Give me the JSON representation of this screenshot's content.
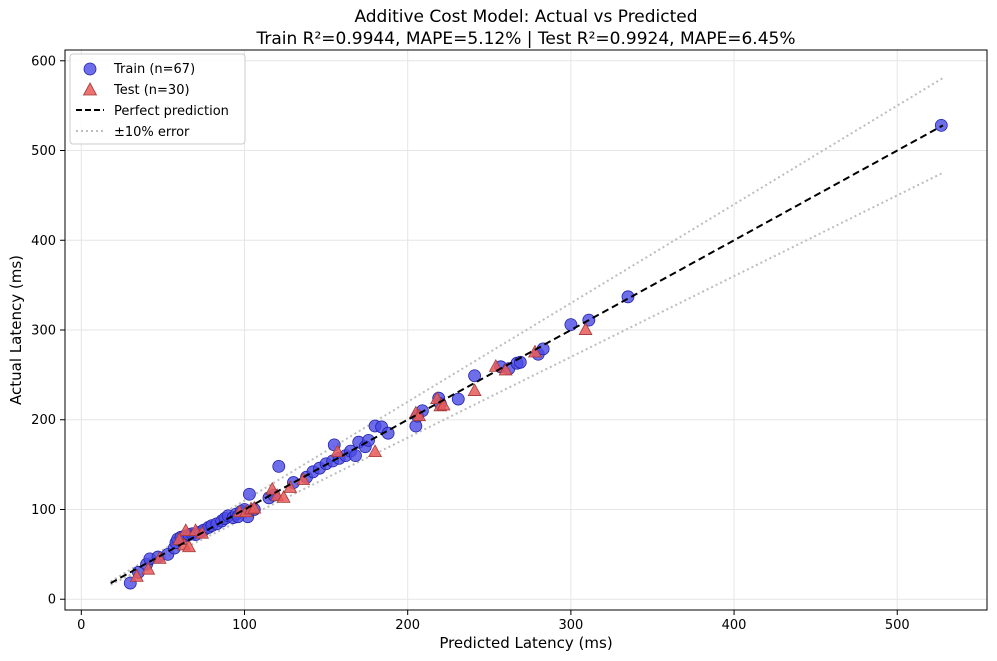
{
  "chart_data": {
    "type": "scatter",
    "title": "Additive Cost Model: Actual vs Predicted",
    "subtitle": "Train R²=0.9944, MAPE=5.12% | Test R²=0.9924, MAPE=6.45%",
    "xlabel": "Predicted Latency (ms)",
    "ylabel": "Actual Latency (ms)",
    "xlim": [
      -10,
      555
    ],
    "ylim": [
      -12,
      612
    ],
    "xticks": [
      0,
      100,
      200,
      300,
      400,
      500
    ],
    "yticks": [
      0,
      100,
      200,
      300,
      400,
      500,
      600
    ],
    "grid": true,
    "legend_position": "top-left",
    "colors": {
      "train": "#4a4ae6",
      "train_edge": "#2222aa",
      "test": "#ea5a5a",
      "test_edge": "#a33a3a",
      "perfect": "#000000",
      "error_band": "#bdbdbd",
      "grid": "#e6e6e6"
    },
    "legend": {
      "train": "Train (n=67)",
      "test": "Test (n=30)",
      "perfect": "Perfect prediction",
      "error_band": "±10% error"
    },
    "reference_lines": {
      "perfect": {
        "x": [
          18,
          528
        ],
        "y": [
          18,
          528
        ]
      },
      "upper_10pct": {
        "x": [
          18,
          528
        ],
        "y": [
          19.8,
          580.8
        ]
      },
      "lower_10pct": {
        "x": [
          18,
          528
        ],
        "y": [
          16.2,
          475.2
        ]
      }
    },
    "series": [
      {
        "name": "Train (n=67)",
        "marker": "circle",
        "points": [
          [
            30,
            18
          ],
          [
            35,
            30
          ],
          [
            40,
            39
          ],
          [
            42,
            45
          ],
          [
            47,
            47
          ],
          [
            53,
            50
          ],
          [
            57,
            57
          ],
          [
            58,
            63
          ],
          [
            59,
            67
          ],
          [
            61,
            69
          ],
          [
            63,
            70
          ],
          [
            66,
            72
          ],
          [
            68,
            73
          ],
          [
            70,
            72
          ],
          [
            73,
            75
          ],
          [
            75,
            77
          ],
          [
            78,
            80
          ],
          [
            80,
            82
          ],
          [
            83,
            84
          ],
          [
            86,
            87
          ],
          [
            88,
            90
          ],
          [
            90,
            93
          ],
          [
            93,
            91
          ],
          [
            95,
            95
          ],
          [
            98,
            98
          ],
          [
            100,
            100
          ],
          [
            102,
            92
          ],
          [
            103,
            117
          ],
          [
            106,
            100
          ],
          [
            115,
            113
          ],
          [
            118,
            116
          ],
          [
            121,
            148
          ],
          [
            130,
            130
          ],
          [
            138,
            136
          ],
          [
            142,
            142
          ],
          [
            146,
            146
          ],
          [
            150,
            151
          ],
          [
            154,
            154
          ],
          [
            155,
            172
          ],
          [
            158,
            157
          ],
          [
            162,
            160
          ],
          [
            165,
            165
          ],
          [
            168,
            160
          ],
          [
            170,
            175
          ],
          [
            174,
            170
          ],
          [
            176,
            177
          ],
          [
            180,
            193
          ],
          [
            184,
            192
          ],
          [
            188,
            185
          ],
          [
            205,
            193
          ],
          [
            206,
            204
          ],
          [
            209,
            210
          ],
          [
            219,
            224
          ],
          [
            220,
            218
          ],
          [
            231,
            223
          ],
          [
            241,
            249
          ],
          [
            257,
            259
          ],
          [
            262,
            257
          ],
          [
            267,
            263
          ],
          [
            269,
            264
          ],
          [
            280,
            273
          ],
          [
            283,
            279
          ],
          [
            300,
            306
          ],
          [
            311,
            311
          ],
          [
            335,
            337
          ],
          [
            527,
            528
          ],
          [
            96,
            92
          ]
        ]
      },
      {
        "name": "Test (n=30)",
        "marker": "triangle",
        "points": [
          [
            34,
            25
          ],
          [
            41,
            33
          ],
          [
            48,
            45
          ],
          [
            63,
            60
          ],
          [
            64,
            76
          ],
          [
            66,
            58
          ],
          [
            70,
            76
          ],
          [
            74,
            73
          ],
          [
            97,
            97
          ],
          [
            101,
            97
          ],
          [
            104,
            100
          ],
          [
            106,
            101
          ],
          [
            117,
            122
          ],
          [
            120,
            115
          ],
          [
            124,
            113
          ],
          [
            128,
            124
          ],
          [
            136,
            133
          ],
          [
            157,
            164
          ],
          [
            180,
            164
          ],
          [
            205,
            207
          ],
          [
            207,
            204
          ],
          [
            218,
            223
          ],
          [
            220,
            215
          ],
          [
            222,
            216
          ],
          [
            241,
            232
          ],
          [
            254,
            259
          ],
          [
            260,
            255
          ],
          [
            278,
            275
          ],
          [
            309,
            300
          ],
          [
            60,
            66
          ]
        ]
      }
    ]
  }
}
